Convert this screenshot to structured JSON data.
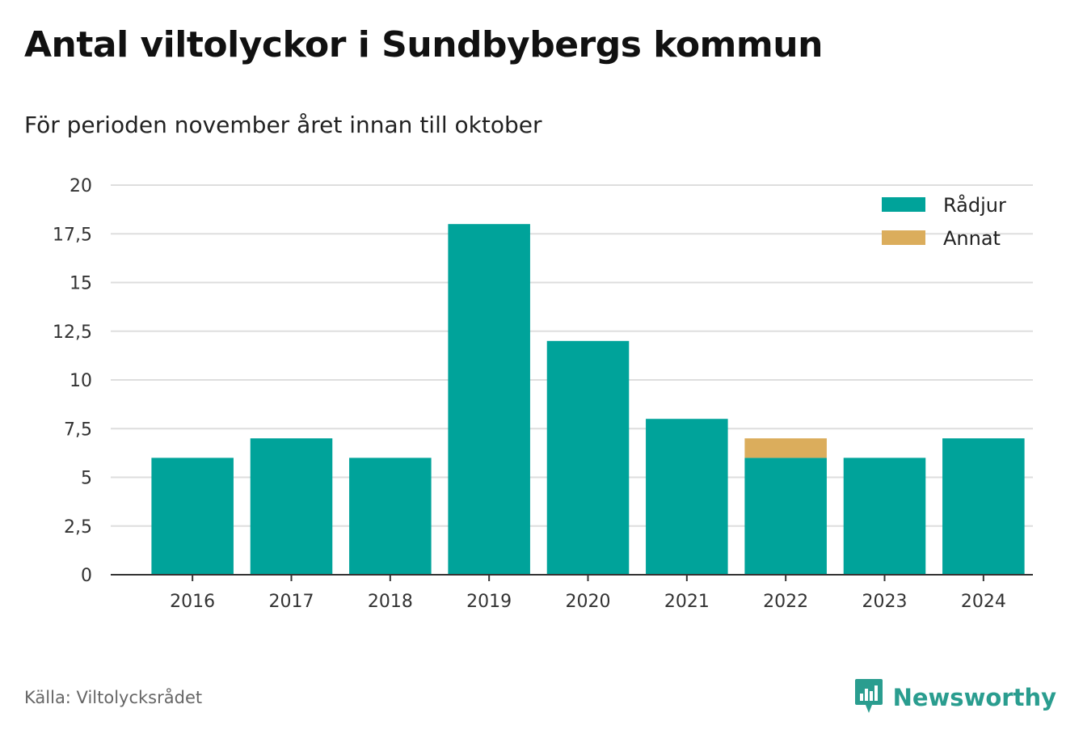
{
  "title": "Antal viltolyckor i Sundbybergs kommun",
  "subtitle": "För perioden november året innan till oktober",
  "source": "Källa: Viltolycksrådet",
  "brand": {
    "name": "Newsworthy",
    "icon": "newsworthy-logo-icon",
    "color": "#2a9d8f"
  },
  "chart_data": {
    "type": "bar",
    "stacked": true,
    "categories": [
      "2016",
      "2017",
      "2018",
      "2019",
      "2020",
      "2021",
      "2022",
      "2023",
      "2024"
    ],
    "series": [
      {
        "name": "Rådjur",
        "color": "#00a39a",
        "values": [
          6,
          7,
          6,
          18,
          12,
          8,
          6,
          6,
          7
        ]
      },
      {
        "name": "Annat",
        "color": "#dbad5c",
        "values": [
          0,
          0,
          0,
          0,
          0,
          0,
          1,
          0,
          0
        ]
      }
    ],
    "ylim": [
      0,
      20
    ],
    "yticks": [
      0,
      2.5,
      5,
      7.5,
      10,
      12.5,
      15,
      17.5,
      20
    ],
    "ytick_labels": [
      "0",
      "2,5",
      "5",
      "7,5",
      "10",
      "12,5",
      "15",
      "17,5",
      "20"
    ],
    "grid": true,
    "legend_position": "top-right",
    "xlabel": "",
    "ylabel": ""
  }
}
